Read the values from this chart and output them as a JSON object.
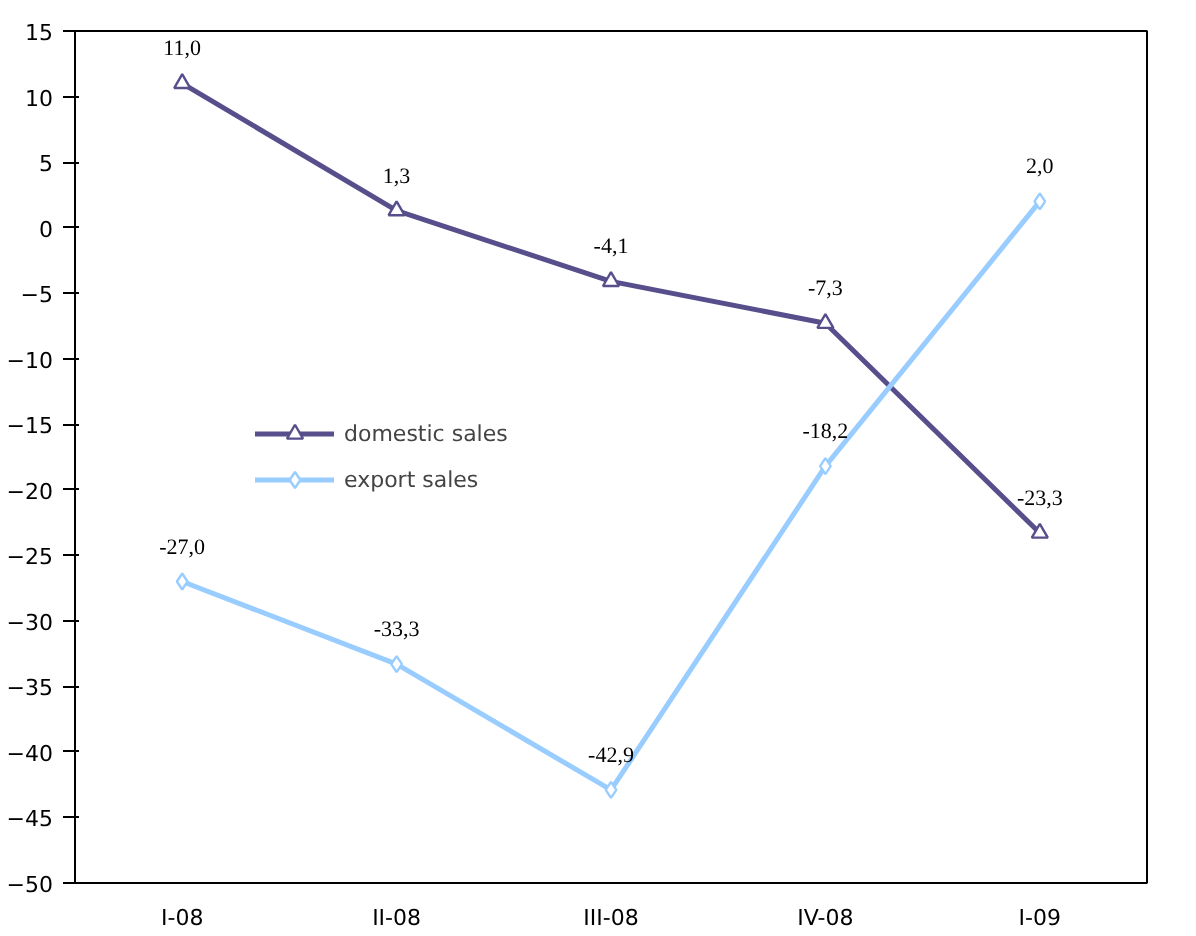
{
  "chart_data": {
    "type": "line",
    "categories": [
      "I-08",
      "II-08",
      "III-08",
      "IV-08",
      "I-09"
    ],
    "series": [
      {
        "name": "domestic sales",
        "color": "#574e8c",
        "marker": "triangle",
        "values": [
          11.0,
          1.3,
          -4.1,
          -7.3,
          -23.3
        ],
        "value_labels": [
          "11,0",
          "1,3",
          "-4,1",
          "-7,3",
          "-23,3"
        ]
      },
      {
        "name": "export sales",
        "color": "#99ccff",
        "marker": "diamond",
        "values": [
          -27.0,
          -33.3,
          -42.9,
          -18.2,
          2.0
        ],
        "value_labels": [
          "-27,0",
          "-33,3",
          "-42,9",
          "-18,2",
          "2,0"
        ]
      }
    ],
    "ylim": [
      -50,
      15
    ],
    "yticks": [
      -50,
      -45,
      -40,
      -35,
      -30,
      -25,
      -20,
      -15,
      -10,
      -5,
      0,
      5,
      10,
      15
    ],
    "grid": false,
    "legend": "left",
    "line_style": "solid"
  }
}
